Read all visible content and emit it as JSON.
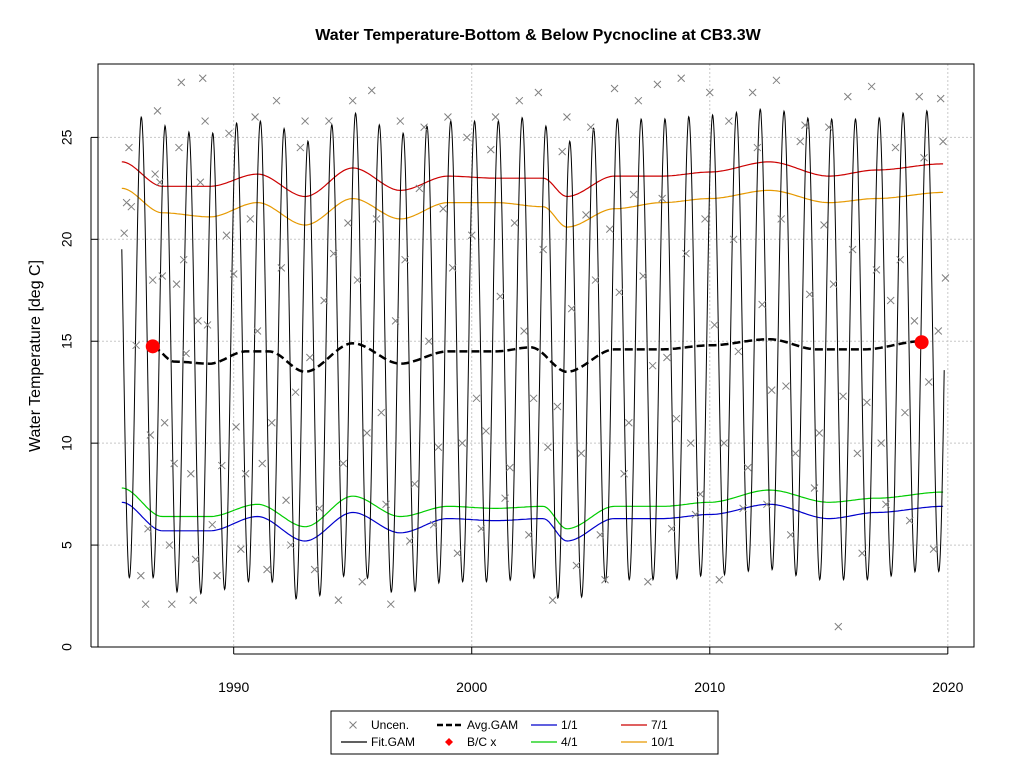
{
  "chart_data": {
    "type": "line",
    "title": "Water Temperature-Bottom & Below Pycnocline at CB3.3W",
    "xlabel": "",
    "ylabel": "Water Temperature [deg C]",
    "xlim": [
      1984.3,
      2021.1
    ],
    "ylim": [
      0,
      28.6
    ],
    "xticks": [
      1990,
      2000,
      2010,
      2020
    ],
    "xtick_labels": [
      "1990",
      "2000",
      "2010",
      "2020"
    ],
    "yticks": [
      0,
      5,
      10,
      15,
      20,
      25
    ],
    "ytick_labels": [
      "0",
      "5",
      "10",
      "15",
      "20",
      "25"
    ],
    "grid": true,
    "legend_position": "bottom",
    "colors": {
      "uncensored": "#808080",
      "fit_gam": "#000000",
      "avg_gam": "#000000",
      "bc": "#ff0000",
      "jan1": "#0000cc",
      "apr1": "#00cc00",
      "jul1": "#cc0000",
      "oct1": "#e69900"
    },
    "legend": [
      {
        "key": "uncen",
        "label": "Uncen.",
        "symbol": "x",
        "color": "#808080"
      },
      {
        "key": "fit",
        "label": "Fit.GAM",
        "symbol": "line",
        "color": "#000000"
      },
      {
        "key": "avg",
        "label": "Avg.GAM",
        "symbol": "dash",
        "color": "#000000"
      },
      {
        "key": "bc",
        "label": "B/C x",
        "symbol": "point",
        "color": "#ff0000"
      },
      {
        "key": "d11",
        "label": "1/1",
        "symbol": "line",
        "color": "#0000cc"
      },
      {
        "key": "d41",
        "label": "4/1",
        "symbol": "line",
        "color": "#00cc00"
      },
      {
        "key": "d71",
        "label": "7/1",
        "symbol": "line",
        "color": "#cc0000"
      },
      {
        "key": "d101",
        "label": "10/1",
        "symbol": "line",
        "color": "#e69900"
      }
    ],
    "bc_points": [
      {
        "x": 1986.6,
        "y": 14.75
      },
      {
        "x": 2018.9,
        "y": 14.95
      }
    ],
    "seasonal_lines": {
      "x": [
        1985.3,
        1987,
        1989,
        1991,
        1993,
        1995,
        1997,
        1999,
        2001,
        2003,
        2004,
        2006,
        2008,
        2010,
        2012.5,
        2015,
        2017,
        2019.8
      ],
      "jul1": [
        23.8,
        22.6,
        22.6,
        23.2,
        22.1,
        23.5,
        22.4,
        23.1,
        23.0,
        23.0,
        22.1,
        23.1,
        23.1,
        23.3,
        23.8,
        23.1,
        23.4,
        23.7
      ],
      "oct1": [
        22.5,
        21.3,
        21.1,
        21.8,
        20.7,
        22.0,
        21.0,
        21.8,
        21.8,
        21.6,
        20.6,
        21.5,
        21.8,
        22.0,
        22.4,
        21.8,
        22.0,
        22.3
      ],
      "apr1": [
        7.8,
        6.4,
        6.4,
        7.0,
        5.9,
        7.4,
        6.4,
        6.9,
        6.8,
        6.9,
        5.8,
        6.9,
        6.9,
        7.1,
        7.7,
        7.1,
        7.3,
        7.6
      ],
      "jan1": [
        7.1,
        5.7,
        5.7,
        6.4,
        5.2,
        6.6,
        5.6,
        6.3,
        6.2,
        6.3,
        5.2,
        6.3,
        6.3,
        6.5,
        7.0,
        6.3,
        6.6,
        6.9
      ]
    },
    "avg_gam": {
      "x": [
        1986.6,
        1987.5,
        1989,
        1990.5,
        1991.5,
        1993,
        1995,
        1997,
        1999,
        2001,
        2002.5,
        2004,
        2006,
        2008,
        2010,
        2012.5,
        2014.5,
        2016.5,
        2018.9
      ],
      "y": [
        14.7,
        14.0,
        13.9,
        14.5,
        14.5,
        13.5,
        14.9,
        13.9,
        14.5,
        14.5,
        14.7,
        13.5,
        14.6,
        14.6,
        14.8,
        15.1,
        14.6,
        14.6,
        15.0
      ]
    },
    "fit_gam": {
      "start": 1985.3,
      "end": 2019.85,
      "mean": 14.6,
      "amplitude": 11.3,
      "peak_month_offset": 0.62
    },
    "uncensored_points": [
      [
        1985.4,
        20.3
      ],
      [
        1985.5,
        21.8
      ],
      [
        1985.6,
        24.5
      ],
      [
        1985.7,
        21.6
      ],
      [
        1985.9,
        14.8
      ],
      [
        1986.1,
        3.5
      ],
      [
        1986.3,
        2.1
      ],
      [
        1986.4,
        5.8
      ],
      [
        1986.5,
        10.4
      ],
      [
        1986.6,
        18.0
      ],
      [
        1986.7,
        23.2
      ],
      [
        1986.8,
        26.3
      ],
      [
        1986.9,
        22.8
      ],
      [
        1987.0,
        18.2
      ],
      [
        1987.1,
        11.0
      ],
      [
        1987.3,
        5.0
      ],
      [
        1987.4,
        2.1
      ],
      [
        1987.5,
        9.0
      ],
      [
        1987.6,
        17.8
      ],
      [
        1987.7,
        24.5
      ],
      [
        1987.8,
        27.7
      ],
      [
        1987.9,
        19.0
      ],
      [
        1988.0,
        14.4
      ],
      [
        1988.2,
        8.5
      ],
      [
        1988.3,
        2.3
      ],
      [
        1988.4,
        4.3
      ],
      [
        1988.5,
        16.0
      ],
      [
        1988.6,
        22.8
      ],
      [
        1988.7,
        27.9
      ],
      [
        1988.8,
        25.8
      ],
      [
        1988.9,
        15.8
      ],
      [
        1989.1,
        6.0
      ],
      [
        1989.3,
        3.5
      ],
      [
        1989.5,
        8.9
      ],
      [
        1989.7,
        20.2
      ],
      [
        1989.8,
        25.2
      ],
      [
        1990.0,
        18.3
      ],
      [
        1990.1,
        10.8
      ],
      [
        1990.3,
        4.8
      ],
      [
        1990.5,
        8.5
      ],
      [
        1990.7,
        21.0
      ],
      [
        1990.9,
        26.0
      ],
      [
        1991.0,
        15.5
      ],
      [
        1991.2,
        9.0
      ],
      [
        1991.4,
        3.8
      ],
      [
        1991.6,
        11.0
      ],
      [
        1991.8,
        26.8
      ],
      [
        1992.0,
        18.6
      ],
      [
        1992.2,
        7.2
      ],
      [
        1992.4,
        5.0
      ],
      [
        1992.6,
        12.5
      ],
      [
        1992.8,
        24.5
      ],
      [
        1993.0,
        25.8
      ],
      [
        1993.2,
        14.2
      ],
      [
        1993.4,
        3.8
      ],
      [
        1993.6,
        6.8
      ],
      [
        1993.8,
        17.0
      ],
      [
        1994.0,
        25.8
      ],
      [
        1994.2,
        19.3
      ],
      [
        1994.4,
        2.3
      ],
      [
        1994.6,
        9.0
      ],
      [
        1994.8,
        20.8
      ],
      [
        1995.0,
        26.8
      ],
      [
        1995.2,
        18.0
      ],
      [
        1995.4,
        3.2
      ],
      [
        1995.6,
        10.5
      ],
      [
        1995.8,
        27.3
      ],
      [
        1996.0,
        21.0
      ],
      [
        1996.2,
        11.5
      ],
      [
        1996.4,
        7.0
      ],
      [
        1996.6,
        2.1
      ],
      [
        1996.8,
        16.0
      ],
      [
        1997.0,
        25.8
      ],
      [
        1997.2,
        19.0
      ],
      [
        1997.4,
        5.2
      ],
      [
        1997.6,
        8.0
      ],
      [
        1997.8,
        22.5
      ],
      [
        1998.0,
        25.5
      ],
      [
        1998.2,
        15.0
      ],
      [
        1998.4,
        6.0
      ],
      [
        1998.6,
        9.8
      ],
      [
        1998.8,
        21.5
      ],
      [
        1999.0,
        26.0
      ],
      [
        1999.2,
        18.6
      ],
      [
        1999.4,
        4.6
      ],
      [
        1999.6,
        10.0
      ],
      [
        1999.8,
        25.0
      ],
      [
        2000.0,
        20.2
      ],
      [
        2000.2,
        12.2
      ],
      [
        2000.4,
        5.8
      ],
      [
        2000.6,
        10.6
      ],
      [
        2000.8,
        24.4
      ],
      [
        2001.0,
        26.0
      ],
      [
        2001.2,
        17.2
      ],
      [
        2001.4,
        7.3
      ],
      [
        2001.6,
        8.8
      ],
      [
        2001.8,
        20.8
      ],
      [
        2002.0,
        26.8
      ],
      [
        2002.2,
        15.5
      ],
      [
        2002.4,
        5.5
      ],
      [
        2002.6,
        12.2
      ],
      [
        2002.8,
        27.2
      ],
      [
        2003.0,
        19.5
      ],
      [
        2003.2,
        9.8
      ],
      [
        2003.4,
        2.3
      ],
      [
        2003.6,
        11.8
      ],
      [
        2003.8,
        24.3
      ],
      [
        2004.0,
        26.0
      ],
      [
        2004.2,
        16.6
      ],
      [
        2004.4,
        4.0
      ],
      [
        2004.6,
        9.5
      ],
      [
        2004.8,
        21.2
      ],
      [
        2005.0,
        25.5
      ],
      [
        2005.2,
        18.0
      ],
      [
        2005.4,
        5.5
      ],
      [
        2005.6,
        3.3
      ],
      [
        2005.8,
        20.5
      ],
      [
        2006.0,
        27.4
      ],
      [
        2006.2,
        17.4
      ],
      [
        2006.4,
        8.5
      ],
      [
        2006.6,
        11.0
      ],
      [
        2006.8,
        22.2
      ],
      [
        2007.0,
        26.8
      ],
      [
        2007.2,
        18.2
      ],
      [
        2007.4,
        3.2
      ],
      [
        2007.6,
        13.8
      ],
      [
        2007.8,
        27.6
      ],
      [
        2008.0,
        22.0
      ],
      [
        2008.2,
        14.2
      ],
      [
        2008.4,
        5.8
      ],
      [
        2008.6,
        11.2
      ],
      [
        2008.8,
        27.9
      ],
      [
        2009.0,
        19.3
      ],
      [
        2009.2,
        10.0
      ],
      [
        2009.4,
        6.5
      ],
      [
        2009.6,
        7.5
      ],
      [
        2009.8,
        21.0
      ],
      [
        2010.0,
        27.2
      ],
      [
        2010.2,
        15.8
      ],
      [
        2010.4,
        3.3
      ],
      [
        2010.6,
        10.0
      ],
      [
        2010.8,
        25.8
      ],
      [
        2011.0,
        20.0
      ],
      [
        2011.2,
        14.5
      ],
      [
        2011.4,
        6.8
      ],
      [
        2011.6,
        8.8
      ],
      [
        2011.8,
        27.2
      ],
      [
        2012.0,
        24.5
      ],
      [
        2012.2,
        16.8
      ],
      [
        2012.4,
        7.0
      ],
      [
        2012.6,
        12.6
      ],
      [
        2012.8,
        27.8
      ],
      [
        2013.0,
        21.0
      ],
      [
        2013.2,
        12.8
      ],
      [
        2013.4,
        5.5
      ],
      [
        2013.6,
        9.5
      ],
      [
        2013.8,
        24.8
      ],
      [
        2014.0,
        25.6
      ],
      [
        2014.2,
        17.3
      ],
      [
        2014.4,
        7.8
      ],
      [
        2014.6,
        10.5
      ],
      [
        2014.8,
        20.7
      ],
      [
        2015.0,
        25.5
      ],
      [
        2015.2,
        17.8
      ],
      [
        2015.4,
        1.0
      ],
      [
        2015.6,
        12.3
      ],
      [
        2015.8,
        27.0
      ],
      [
        2016.0,
        19.5
      ],
      [
        2016.2,
        9.5
      ],
      [
        2016.4,
        4.6
      ],
      [
        2016.6,
        12.0
      ],
      [
        2016.8,
        27.5
      ],
      [
        2017.0,
        18.5
      ],
      [
        2017.2,
        10.0
      ],
      [
        2017.4,
        7.0
      ],
      [
        2017.6,
        17.0
      ],
      [
        2017.8,
        24.5
      ],
      [
        2018.0,
        19.0
      ],
      [
        2018.2,
        11.5
      ],
      [
        2018.4,
        6.2
      ],
      [
        2018.6,
        16.0
      ],
      [
        2018.8,
        27.0
      ],
      [
        2019.0,
        24.0
      ],
      [
        2019.2,
        13.0
      ],
      [
        2019.4,
        4.8
      ],
      [
        2019.6,
        15.5
      ],
      [
        2019.7,
        26.9
      ],
      [
        2019.8,
        24.8
      ],
      [
        2019.9,
        18.1
      ]
    ]
  }
}
